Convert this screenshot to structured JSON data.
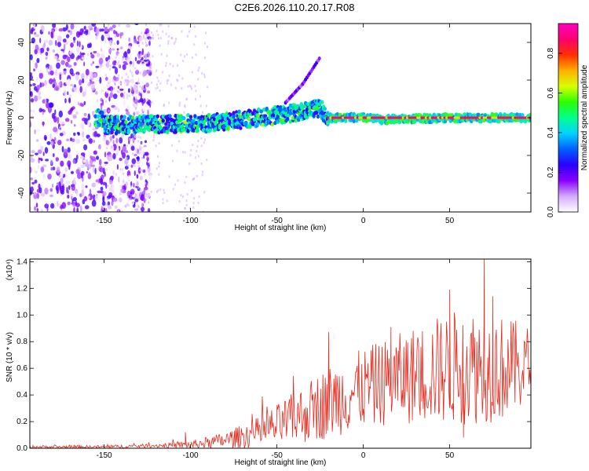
{
  "figure": {
    "title": "C2E6.2026.110.20.17.R08"
  },
  "chart_data": [
    {
      "type": "heatmap",
      "title": "C2E6.2026.110.20.17.R08",
      "xlabel": "Height of straight line (km)",
      "ylabel": "Frequency (Hz)",
      "xlim": [
        -193,
        97
      ],
      "ylim": [
        -50,
        50
      ],
      "x_ticks": [
        -150,
        -100,
        -50,
        0,
        50
      ],
      "y_ticks": [
        -40,
        -20,
        0,
        20,
        40
      ],
      "colorbar": {
        "label": "Normalized spectral amplitude",
        "range": [
          0,
          0.95
        ],
        "ticks": [
          "0.0",
          "0.2",
          "0.4",
          "0.6",
          "0.8"
        ],
        "colors": [
          "#ffffff",
          "#d4aaff",
          "#8a00ff",
          "#2a00ff",
          "#0060ff",
          "#00d2ff",
          "#00ff90",
          "#2aff00",
          "#d8ff00",
          "#ffb000",
          "#ff3000",
          "#ff0070",
          "#ff00c0"
        ]
      },
      "ridge_center_hz": [
        {
          "x": -150,
          "y": -4
        },
        {
          "x": -100,
          "y": -3
        },
        {
          "x": -90,
          "y": -3
        },
        {
          "x": -60,
          "y": 0
        },
        {
          "x": -30,
          "y": 4
        },
        {
          "x": -25,
          "y": 5
        },
        {
          "x": -20,
          "y": 0
        },
        {
          "x": 0,
          "y": 0
        },
        {
          "x": 10,
          "y": -1
        },
        {
          "x": 50,
          "y": 0
        },
        {
          "x": 97,
          "y": 0
        }
      ],
      "peak_band": {
        "x_start": -20,
        "x_end": 97,
        "y": 0,
        "amplitude": 0.9
      },
      "secondary_trace": [
        {
          "x": -45,
          "y": 8
        },
        {
          "x": -35,
          "y": 18
        },
        {
          "x": -25,
          "y": 32
        }
      ]
    },
    {
      "type": "line",
      "xlabel": "Height of straight line (km)",
      "ylabel": "SNR (10 * v/v)",
      "y_multiplier": "(x10⁴)",
      "xlim": [
        -193,
        97
      ],
      "ylim": [
        0,
        1.42
      ],
      "x_ticks": [
        -150,
        -100,
        -50,
        0,
        50
      ],
      "y_ticks": [
        "0.0",
        "0.2",
        "0.4",
        "0.6",
        "0.8",
        "1.0",
        "1.2",
        "1.4"
      ],
      "series_color": "#e8291c",
      "envelope": [
        {
          "x": -193,
          "base": 0.01,
          "amp": 0.012
        },
        {
          "x": -150,
          "base": 0.01,
          "amp": 0.012
        },
        {
          "x": -120,
          "base": 0.02,
          "amp": 0.015
        },
        {
          "x": -100,
          "base": 0.025,
          "amp": 0.03
        },
        {
          "x": -80,
          "base": 0.06,
          "amp": 0.06
        },
        {
          "x": -60,
          "base": 0.12,
          "amp": 0.12
        },
        {
          "x": -40,
          "base": 0.22,
          "amp": 0.2
        },
        {
          "x": -20,
          "base": 0.35,
          "amp": 0.28
        },
        {
          "x": 0,
          "base": 0.45,
          "amp": 0.3
        },
        {
          "x": 20,
          "base": 0.52,
          "amp": 0.34
        },
        {
          "x": 40,
          "base": 0.58,
          "amp": 0.4
        },
        {
          "x": 60,
          "base": 0.62,
          "amp": 0.45
        },
        {
          "x": 80,
          "base": 0.6,
          "amp": 0.4
        },
        {
          "x": 97,
          "base": 0.62,
          "amp": 0.3
        }
      ],
      "notable_points": [
        {
          "x": -103,
          "y": 0.12
        },
        {
          "x": -20,
          "y": 0.87
        },
        {
          "x": 16,
          "y": 0.91
        },
        {
          "x": 50,
          "y": 1.19
        },
        {
          "x": 58,
          "y": 0.08
        },
        {
          "x": 70,
          "y": 1.42
        },
        {
          "x": 75,
          "y": 1.14
        }
      ]
    }
  ]
}
